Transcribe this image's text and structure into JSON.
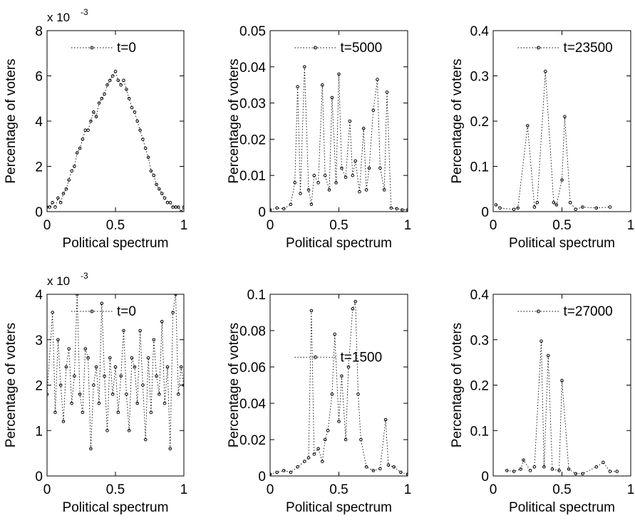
{
  "figure": {
    "colors": {
      "axes": "#000000",
      "series": "#000000",
      "background": "#ffffff"
    }
  },
  "chart_data": [
    {
      "type": "line",
      "xlabel": "Political spectrum",
      "ylabel": "Percentage of voters",
      "xlim": [
        0,
        1
      ],
      "ylim": [
        0,
        0.008
      ],
      "x_ticks": [
        "0",
        "0.5",
        "1"
      ],
      "y_ticks": [
        "0",
        "2",
        "4",
        "6",
        "8"
      ],
      "y_multiplier": "x 10",
      "y_exponent": "-3",
      "legend": {
        "label": "t=0",
        "placement": "top-center"
      },
      "grid": false,
      "series": [
        {
          "name": "t=0",
          "style": "dotted line with circle markers",
          "x": [
            0.0,
            0.02,
            0.04,
            0.06,
            0.08,
            0.1,
            0.12,
            0.14,
            0.16,
            0.18,
            0.2,
            0.22,
            0.24,
            0.26,
            0.28,
            0.3,
            0.32,
            0.34,
            0.36,
            0.38,
            0.4,
            0.42,
            0.44,
            0.46,
            0.48,
            0.5,
            0.52,
            0.54,
            0.56,
            0.58,
            0.6,
            0.62,
            0.64,
            0.66,
            0.68,
            0.7,
            0.72,
            0.74,
            0.76,
            0.78,
            0.8,
            0.82,
            0.84,
            0.86,
            0.88,
            0.9,
            0.92,
            0.94,
            0.96,
            0.98,
            1.0
          ],
          "y": [
            0.0002,
            0.0002,
            0.0004,
            0.0002,
            0.0006,
            0.0004,
            0.0008,
            0.001,
            0.0014,
            0.0018,
            0.002,
            0.0026,
            0.0028,
            0.0032,
            0.0036,
            0.0036,
            0.004,
            0.0044,
            0.0042,
            0.0048,
            0.005,
            0.0052,
            0.0056,
            0.0058,
            0.006,
            0.0062,
            0.0058,
            0.0056,
            0.0058,
            0.0054,
            0.005,
            0.0046,
            0.0044,
            0.004,
            0.0036,
            0.0032,
            0.0028,
            0.0024,
            0.0018,
            0.0016,
            0.0012,
            0.001,
            0.0008,
            0.0006,
            0.0004,
            0.0004,
            0.0002,
            0.0002,
            0.0002,
            0.0,
            0.0002
          ]
        }
      ]
    },
    {
      "type": "line",
      "xlabel": "Political spectrum",
      "ylabel": "Percentage of voters",
      "xlim": [
        0,
        1
      ],
      "ylim": [
        0,
        0.05
      ],
      "x_ticks": [
        "0",
        "0.5",
        "1"
      ],
      "y_ticks": [
        "0",
        "0.01",
        "0.02",
        "0.03",
        "0.04",
        "0.05"
      ],
      "legend": {
        "label": "t=5000",
        "placement": "top-center"
      },
      "grid": false,
      "series": [
        {
          "name": "t=5000",
          "style": "dotted line with circle markers",
          "x": [
            0.0,
            0.05,
            0.1,
            0.15,
            0.18,
            0.2,
            0.22,
            0.25,
            0.28,
            0.3,
            0.32,
            0.35,
            0.38,
            0.4,
            0.43,
            0.45,
            0.48,
            0.5,
            0.52,
            0.55,
            0.58,
            0.6,
            0.62,
            0.65,
            0.68,
            0.7,
            0.72,
            0.75,
            0.78,
            0.8,
            0.83,
            0.85,
            0.88,
            0.92,
            0.96,
            1.0
          ],
          "y": [
            0.0005,
            0.001,
            0.0008,
            0.002,
            0.008,
            0.0345,
            0.005,
            0.04,
            0.006,
            0.002,
            0.01,
            0.008,
            0.035,
            0.01,
            0.006,
            0.0315,
            0.008,
            0.038,
            0.012,
            0.0095,
            0.025,
            0.01,
            0.014,
            0.0055,
            0.023,
            0.006,
            0.012,
            0.028,
            0.0365,
            0.012,
            0.006,
            0.033,
            0.001,
            0.0008,
            0.0005,
            0.0005
          ]
        }
      ]
    },
    {
      "type": "line",
      "xlabel": "Political spectrum",
      "ylabel": "Percentage of voters",
      "xlim": [
        0,
        1
      ],
      "ylim": [
        0,
        0.4
      ],
      "x_ticks": [
        "0",
        "0.5",
        "1"
      ],
      "y_ticks": [
        "0",
        "0.1",
        "0.2",
        "0.3",
        "0.4"
      ],
      "legend": {
        "label": "t=23500",
        "placement": "top-center"
      },
      "grid": false,
      "series": [
        {
          "name": "t=23500",
          "style": "dotted line with circle markers",
          "x": [
            0.02,
            0.05,
            0.15,
            0.18,
            0.25,
            0.3,
            0.32,
            0.38,
            0.44,
            0.46,
            0.5,
            0.52,
            0.56,
            0.6,
            0.65,
            0.75,
            0.85
          ],
          "y": [
            0.015,
            0.008,
            0.005,
            0.008,
            0.19,
            0.01,
            0.02,
            0.31,
            0.02,
            0.015,
            0.07,
            0.21,
            0.02,
            0.005,
            0.01,
            0.008,
            0.01
          ]
        }
      ]
    },
    {
      "type": "line",
      "xlabel": "Political spectrum",
      "ylabel": "Percentage of voters",
      "xlim": [
        0,
        1
      ],
      "ylim": [
        0,
        0.004
      ],
      "x_ticks": [
        "0",
        "0.5",
        "1"
      ],
      "y_ticks": [
        "0",
        "1",
        "2",
        "3",
        "4"
      ],
      "y_multiplier": "x 10",
      "y_exponent": "-3",
      "legend": {
        "label": "t=0",
        "placement": "top-center"
      },
      "grid": false,
      "series": [
        {
          "name": "t=0",
          "style": "dotted line with circle markers",
          "x": [
            0.0,
            0.04,
            0.06,
            0.08,
            0.1,
            0.12,
            0.14,
            0.16,
            0.18,
            0.2,
            0.22,
            0.24,
            0.26,
            0.28,
            0.3,
            0.32,
            0.34,
            0.36,
            0.38,
            0.4,
            0.42,
            0.44,
            0.46,
            0.48,
            0.5,
            0.52,
            0.54,
            0.56,
            0.58,
            0.6,
            0.62,
            0.64,
            0.66,
            0.68,
            0.7,
            0.72,
            0.74,
            0.76,
            0.78,
            0.8,
            0.82,
            0.84,
            0.86,
            0.88,
            0.9,
            0.92,
            0.94,
            0.96,
            0.98,
            1.0
          ],
          "y": [
            0.0018,
            0.0036,
            0.0014,
            0.003,
            0.002,
            0.0012,
            0.0024,
            0.0028,
            0.0016,
            0.0022,
            0.004,
            0.0018,
            0.0014,
            0.0028,
            0.0026,
            0.0006,
            0.002,
            0.0024,
            0.0016,
            0.0038,
            0.0022,
            0.001,
            0.0026,
            0.0018,
            0.0024,
            0.0014,
            0.0022,
            0.0032,
            0.0018,
            0.001,
            0.0026,
            0.0024,
            0.0016,
            0.0032,
            0.002,
            0.0008,
            0.0026,
            0.0014,
            0.003,
            0.0022,
            0.0018,
            0.0034,
            0.0016,
            0.0024,
            0.0006,
            0.0036,
            0.004,
            0.0018,
            0.0024,
            0.002
          ]
        }
      ]
    },
    {
      "type": "line",
      "xlabel": "Political spectrum",
      "ylabel": "Percentage of voters",
      "xlim": [
        0,
        1
      ],
      "ylim": [
        0,
        0.1
      ],
      "x_ticks": [
        "0",
        "0.5",
        "1"
      ],
      "y_ticks": [
        "0",
        "0.02",
        "0.04",
        "0.06",
        "0.08",
        "0.1"
      ],
      "legend": {
        "label": "t=1500",
        "placement": "center"
      },
      "grid": false,
      "series": [
        {
          "name": "t=1500",
          "style": "dotted line with circle markers",
          "x": [
            0.0,
            0.05,
            0.1,
            0.15,
            0.2,
            0.25,
            0.28,
            0.3,
            0.32,
            0.35,
            0.38,
            0.4,
            0.42,
            0.45,
            0.47,
            0.5,
            0.52,
            0.55,
            0.57,
            0.6,
            0.62,
            0.64,
            0.66,
            0.7,
            0.75,
            0.8,
            0.84,
            0.86,
            0.9,
            0.95,
            1.0
          ],
          "y": [
            0.001,
            0.002,
            0.003,
            0.002,
            0.005,
            0.008,
            0.01,
            0.091,
            0.012,
            0.015,
            0.008,
            0.02,
            0.025,
            0.045,
            0.078,
            0.03,
            0.055,
            0.02,
            0.06,
            0.092,
            0.096,
            0.045,
            0.02,
            0.005,
            0.003,
            0.004,
            0.031,
            0.006,
            0.005,
            0.002,
            0.001
          ]
        }
      ]
    },
    {
      "type": "line",
      "xlabel": "Political spectrum",
      "ylabel": "Percentage of voters",
      "xlim": [
        0,
        1
      ],
      "ylim": [
        0,
        0.4
      ],
      "x_ticks": [
        "0",
        "0.5",
        "1"
      ],
      "y_ticks": [
        "0",
        "0.1",
        "0.2",
        "0.3",
        "0.4"
      ],
      "legend": {
        "label": "t=27000",
        "placement": "top-center"
      },
      "grid": false,
      "series": [
        {
          "name": "t=27000",
          "style": "dotted line with circle markers",
          "x": [
            0.1,
            0.15,
            0.2,
            0.22,
            0.27,
            0.3,
            0.35,
            0.37,
            0.4,
            0.43,
            0.48,
            0.5,
            0.55,
            0.6,
            0.65,
            0.75,
            0.8,
            0.85,
            0.9
          ],
          "y": [
            0.012,
            0.01,
            0.015,
            0.035,
            0.012,
            0.02,
            0.297,
            0.02,
            0.265,
            0.015,
            0.012,
            0.21,
            0.015,
            0.005,
            0.005,
            0.02,
            0.03,
            0.01,
            0.01
          ]
        }
      ]
    }
  ]
}
